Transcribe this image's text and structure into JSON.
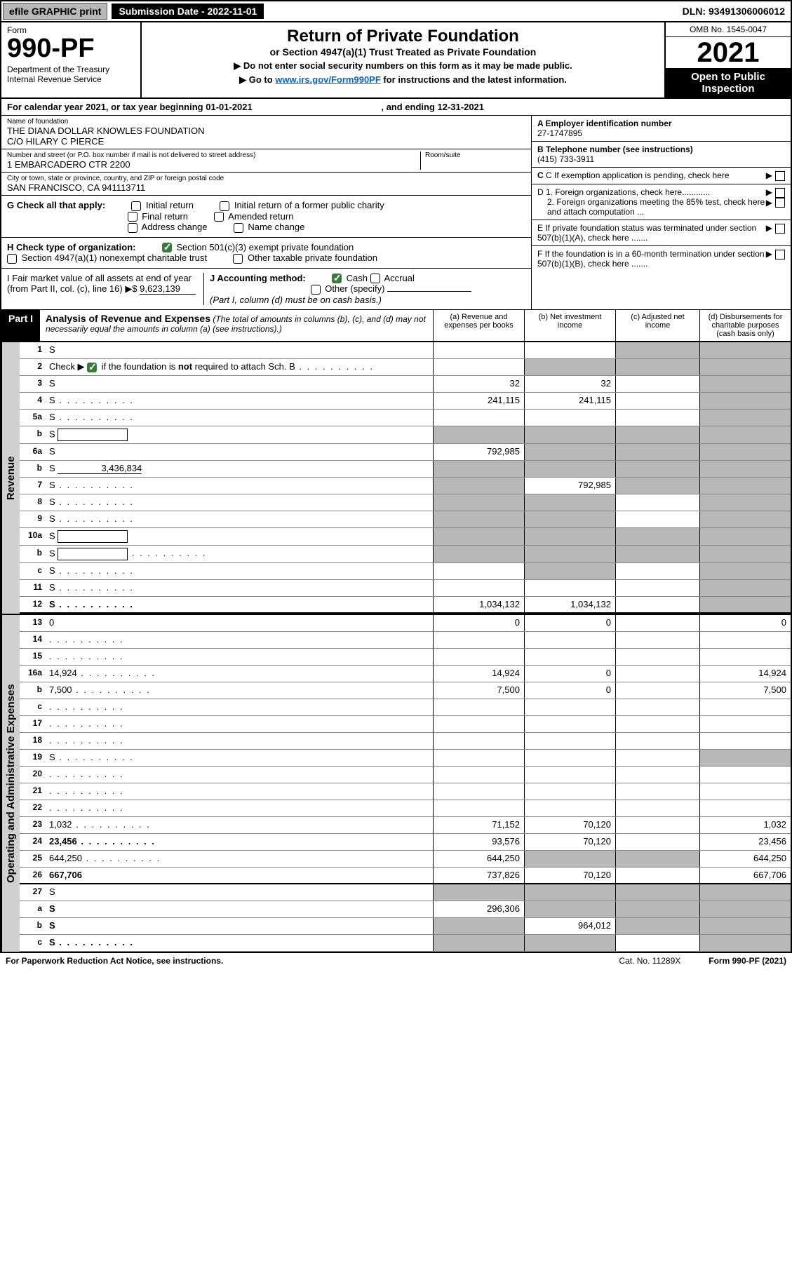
{
  "top": {
    "efile": "efile GRAPHIC print",
    "subdate_label": "Submission Date - 2022-11-01",
    "dln": "DLN: 93491306006012"
  },
  "header": {
    "form_word": "Form",
    "form_num": "990-PF",
    "dept": "Department of the Treasury\nInternal Revenue Service",
    "title": "Return of Private Foundation",
    "subtitle": "or Section 4947(a)(1) Trust Treated as Private Foundation",
    "instr1": "▶ Do not enter social security numbers on this form as it may be made public.",
    "instr2_pre": "▶ Go to ",
    "instr2_link": "www.irs.gov/Form990PF",
    "instr2_post": " for instructions and the latest information.",
    "omb": "OMB No. 1545-0047",
    "year": "2021",
    "open": "Open to Public Inspection"
  },
  "cal": {
    "text_pre": "For calendar year 2021, or tax year beginning ",
    "begin": "01-01-2021",
    "text_mid": " , and ending ",
    "end": "12-31-2021"
  },
  "ident": {
    "name_label": "Name of foundation",
    "name": "THE DIANA DOLLAR KNOWLES FOUNDATION\nC/O HILARY C PIERCE",
    "addr_label": "Number and street (or P.O. box number if mail is not delivered to street address)",
    "addr": "1 EMBARCADERO CTR 2200",
    "room_label": "Room/suite",
    "city_label": "City or town, state or province, country, and ZIP or foreign postal code",
    "city": "SAN FRANCISCO, CA 941113711",
    "a_label": "A Employer identification number",
    "a_val": "27-1747895",
    "b_label": "B Telephone number (see instructions)",
    "b_val": "(415) 733-3911",
    "c_label": "C If exemption application is pending, check here",
    "d1": "D 1. Foreign organizations, check here............",
    "d2": "2. Foreign organizations meeting the 85% test, check here and attach computation ...",
    "e": "E  If private foundation status was terminated under section 507(b)(1)(A), check here .......",
    "f": "F  If the foundation is in a 60-month termination under section 507(b)(1)(B), check here .......",
    "g_label": "G Check all that apply:",
    "g_opts": [
      "Initial return",
      "Initial return of a former public charity",
      "Final return",
      "Amended return",
      "Address change",
      "Name change"
    ],
    "h_label": "H Check type of organization:",
    "h_opts": [
      "Section 501(c)(3) exempt private foundation",
      "Section 4947(a)(1) nonexempt charitable trust",
      "Other taxable private foundation"
    ],
    "i_label": "I Fair market value of all assets at end of year (from Part II, col. (c), line 16) ▶$",
    "i_val": "9,623,139",
    "j_label": "J Accounting method:",
    "j_opts": [
      "Cash",
      "Accrual",
      "Other (specify)"
    ],
    "j_note": "(Part I, column (d) must be on cash basis.)"
  },
  "part1": {
    "label": "Part I",
    "title": "Analysis of Revenue and Expenses",
    "note": " (The total of amounts in columns (b), (c), and (d) may not necessarily equal the amounts in column (a) (see instructions).)",
    "col_a": "(a)   Revenue and expenses per books",
    "col_b": "(b)   Net investment income",
    "col_c": "(c)   Adjusted net income",
    "col_d": "(d)  Disbursements for charitable purposes (cash basis only)"
  },
  "sections": {
    "revenue": "Revenue",
    "expenses": "Operating and Administrative Expenses"
  },
  "rows": [
    {
      "n": "1",
      "d": "S",
      "a": "",
      "b": "",
      "c": "S"
    },
    {
      "n": "2",
      "d": "S",
      "dots": true,
      "a": "",
      "b": "S",
      "c": "S",
      "checked": true
    },
    {
      "n": "3",
      "d": "S",
      "a": "32",
      "b": "32",
      "c": ""
    },
    {
      "n": "4",
      "d": "S",
      "dots": true,
      "a": "241,115",
      "b": "241,115",
      "c": ""
    },
    {
      "n": "5a",
      "d": "S",
      "dots": true,
      "a": "",
      "b": "",
      "c": ""
    },
    {
      "n": "b",
      "d": "S",
      "box": true,
      "a": "S",
      "b": "S",
      "c": "S"
    },
    {
      "n": "6a",
      "d": "S",
      "a": "792,985",
      "b": "S",
      "c": "S"
    },
    {
      "n": "b",
      "d": "S",
      "boxval": "3,436,834",
      "a": "S",
      "b": "S",
      "c": "S"
    },
    {
      "n": "7",
      "d": "S",
      "dots": true,
      "a": "S",
      "b": "792,985",
      "c": "S"
    },
    {
      "n": "8",
      "d": "S",
      "dots": true,
      "a": "S",
      "b": "S",
      "c": ""
    },
    {
      "n": "9",
      "d": "S",
      "dots": true,
      "a": "S",
      "b": "S",
      "c": ""
    },
    {
      "n": "10a",
      "d": "S",
      "box": true,
      "a": "S",
      "b": "S",
      "c": "S"
    },
    {
      "n": "b",
      "d": "S",
      "dots": true,
      "box": true,
      "a": "S",
      "b": "S",
      "c": "S"
    },
    {
      "n": "c",
      "d": "S",
      "dots": true,
      "a": "",
      "b": "S",
      "c": ""
    },
    {
      "n": "11",
      "d": "S",
      "dots": true,
      "a": "",
      "b": "",
      "c": ""
    },
    {
      "n": "12",
      "d": "S",
      "dots": true,
      "bold": true,
      "thick": true,
      "a": "1,034,132",
      "b": "1,034,132",
      "c": ""
    }
  ],
  "exp_rows": [
    {
      "n": "13",
      "d": "0",
      "a": "0",
      "b": "0",
      "c": ""
    },
    {
      "n": "14",
      "d": "",
      "dots": true,
      "a": "",
      "b": "",
      "c": ""
    },
    {
      "n": "15",
      "d": "",
      "dots": true,
      "a": "",
      "b": "",
      "c": ""
    },
    {
      "n": "16a",
      "d": "14,924",
      "dots": true,
      "a": "14,924",
      "b": "0",
      "c": ""
    },
    {
      "n": "b",
      "d": "7,500",
      "dots": true,
      "a": "7,500",
      "b": "0",
      "c": ""
    },
    {
      "n": "c",
      "d": "",
      "dots": true,
      "a": "",
      "b": "",
      "c": ""
    },
    {
      "n": "17",
      "d": "",
      "dots": true,
      "a": "",
      "b": "",
      "c": ""
    },
    {
      "n": "18",
      "d": "",
      "dots": true,
      "a": "",
      "b": "",
      "c": ""
    },
    {
      "n": "19",
      "d": "S",
      "dots": true,
      "a": "",
      "b": "",
      "c": ""
    },
    {
      "n": "20",
      "d": "",
      "dots": true,
      "a": "",
      "b": "",
      "c": ""
    },
    {
      "n": "21",
      "d": "",
      "dots": true,
      "a": "",
      "b": "",
      "c": ""
    },
    {
      "n": "22",
      "d": "",
      "dots": true,
      "a": "",
      "b": "",
      "c": ""
    },
    {
      "n": "23",
      "d": "1,032",
      "dots": true,
      "a": "71,152",
      "b": "70,120",
      "c": ""
    },
    {
      "n": "24",
      "d": "23,456",
      "dots": true,
      "bold": true,
      "a": "93,576",
      "b": "70,120",
      "c": ""
    },
    {
      "n": "25",
      "d": "644,250",
      "dots": true,
      "a": "644,250",
      "b": "S",
      "c": "S"
    },
    {
      "n": "26",
      "d": "667,706",
      "bold": true,
      "thick": true,
      "a": "737,826",
      "b": "70,120",
      "c": ""
    },
    {
      "n": "27",
      "d": "S",
      "a": "S",
      "b": "S",
      "c": "S"
    },
    {
      "n": "a",
      "d": "S",
      "bold": true,
      "a": "296,306",
      "b": "S",
      "c": "S"
    },
    {
      "n": "b",
      "d": "S",
      "bold": true,
      "a": "S",
      "b": "964,012",
      "c": "S"
    },
    {
      "n": "c",
      "d": "S",
      "dots": true,
      "bold": true,
      "a": "S",
      "b": "S",
      "c": ""
    }
  ],
  "footer": {
    "left": "For Paperwork Reduction Act Notice, see instructions.",
    "mid": "Cat. No. 11289X",
    "right": "Form 990-PF (2021)"
  }
}
